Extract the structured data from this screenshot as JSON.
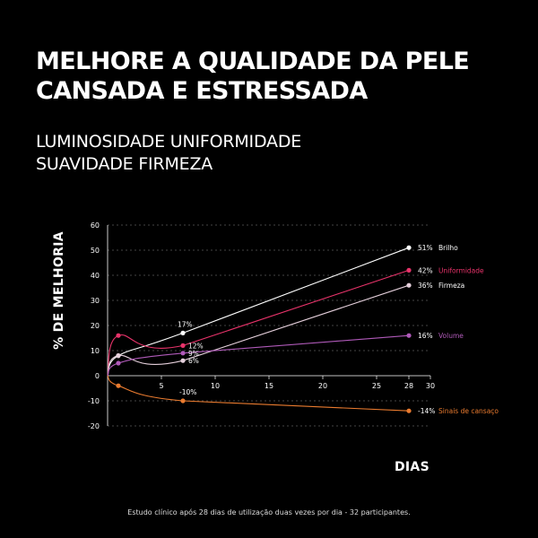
{
  "headline": {
    "line1": "MELHORE A QUALIDADE DA PELE",
    "line2": "CANSADA E ESTRESSADA"
  },
  "subheadline": {
    "line1": "LUMINOSIDADE UNIFORMIDADE",
    "line2": "SUAVIDADE FIRMEZA"
  },
  "footnote": "Estudo clínico após 28 dias de utilização duas vezes por dia - 32 participantes.",
  "chart_data": {
    "type": "line",
    "ylabel": "% DE MELHORIA",
    "xlabel": "DIAS",
    "xlim": [
      0,
      30
    ],
    "ylim": [
      -20,
      60
    ],
    "xticks": [
      5,
      10,
      15,
      20,
      25,
      28,
      30
    ],
    "yticks": [
      -20,
      -10,
      0,
      10,
      20,
      30,
      40,
      50,
      60
    ],
    "grid": "horizontal dashed",
    "legend": "right of line ends",
    "series": [
      {
        "name": "Brilho",
        "color": "#ffffff",
        "points": [
          [
            0,
            0
          ],
          [
            1,
            8
          ],
          [
            7,
            17
          ],
          [
            28,
            51
          ]
        ],
        "labels": [
          {
            "x": 7,
            "text": "17%"
          },
          {
            "x": 28,
            "text": "51%"
          }
        ]
      },
      {
        "name": "Uniformidade",
        "color": "#e8336a",
        "points": [
          [
            0,
            0
          ],
          [
            1,
            16
          ],
          [
            7,
            12
          ],
          [
            28,
            42
          ]
        ],
        "labels": [
          {
            "x": 7,
            "text": "12%"
          },
          {
            "x": 28,
            "text": "42%"
          }
        ]
      },
      {
        "name": "Firmeza",
        "color": "#e6d0dc",
        "points": [
          [
            0,
            0
          ],
          [
            1,
            8
          ],
          [
            7,
            6
          ],
          [
            28,
            36
          ]
        ],
        "labels": [
          {
            "x": 7,
            "text": "6%"
          },
          {
            "x": 28,
            "text": "36%"
          }
        ]
      },
      {
        "name": "Volume",
        "color": "#b05ab9",
        "points": [
          [
            0,
            0
          ],
          [
            1,
            5
          ],
          [
            7,
            9
          ],
          [
            28,
            16
          ]
        ],
        "labels": [
          {
            "x": 7,
            "text": "9%"
          },
          {
            "x": 28,
            "text": "16%"
          }
        ]
      },
      {
        "name": "Sinais de cansaço",
        "color": "#ea7b2f",
        "points": [
          [
            0,
            0
          ],
          [
            1,
            -4
          ],
          [
            7,
            -10
          ],
          [
            28,
            -14
          ]
        ],
        "labels": [
          {
            "x": 7,
            "text": "-10%"
          },
          {
            "x": 28,
            "text": "-14%"
          }
        ]
      }
    ]
  }
}
